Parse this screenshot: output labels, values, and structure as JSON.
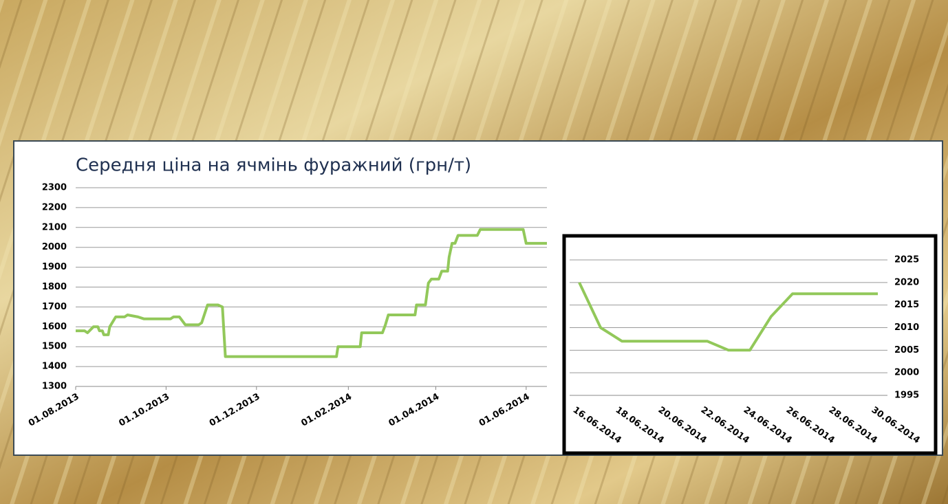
{
  "chart_data": [
    {
      "type": "line",
      "title": "Середня ціна на ячмінь фуражний (грн/т)",
      "x": [
        "2013-08-01",
        "2013-08-07",
        "2013-08-09",
        "2013-08-13",
        "2013-08-16",
        "2013-08-17",
        "2013-08-19",
        "2013-08-20",
        "2013-08-23",
        "2013-08-24",
        "2013-08-28",
        "2013-09-03",
        "2013-09-05",
        "2013-09-12",
        "2013-09-16",
        "2013-10-04",
        "2013-10-06",
        "2013-10-10",
        "2013-10-14",
        "2013-10-23",
        "2013-10-25",
        "2013-10-29",
        "2013-11-05",
        "2013-11-08",
        "2013-11-10",
        "2014-01-24",
        "2014-01-25",
        "2014-02-09",
        "2014-02-10",
        "2014-02-24",
        "2014-02-26",
        "2014-02-28",
        "2014-03-18",
        "2014-03-19",
        "2014-03-25",
        "2014-03-27",
        "2014-03-29",
        "2014-04-03",
        "2014-04-05",
        "2014-04-09",
        "2014-04-10",
        "2014-04-12",
        "2014-04-14",
        "2014-04-16",
        "2014-04-29",
        "2014-05-01",
        "2014-05-30",
        "2014-06-01",
        "2014-06-15"
      ],
      "series": [
        {
          "name": "Середня ціна",
          "color": "#92c85a",
          "values": [
            1580,
            1580,
            1570,
            1600,
            1600,
            1580,
            1580,
            1560,
            1560,
            1600,
            1650,
            1650,
            1660,
            1650,
            1640,
            1640,
            1650,
            1650,
            1610,
            1610,
            1620,
            1710,
            1710,
            1700,
            1450,
            1450,
            1500,
            1500,
            1570,
            1570,
            1610,
            1660,
            1660,
            1710,
            1710,
            1820,
            1840,
            1840,
            1880,
            1880,
            1950,
            2020,
            2020,
            2060,
            2060,
            2090,
            2090,
            2020,
            2020
          ]
        }
      ],
      "xlim": [
        "2013-08-01",
        "2014-06-15"
      ],
      "xticks": [
        {
          "value": "2013-08-01",
          "label": "01.08.2013"
        },
        {
          "value": "2013-10-01",
          "label": "01.10.2013"
        },
        {
          "value": "2013-12-01",
          "label": "01.12.2013"
        },
        {
          "value": "2014-02-01",
          "label": "01.02.2014"
        },
        {
          "value": "2014-04-01",
          "label": "01.04.2014"
        },
        {
          "value": "2014-06-01",
          "label": "01.06.2014"
        }
      ],
      "ylim": [
        1300,
        2300
      ],
      "yticks": [
        1300,
        1400,
        1500,
        1600,
        1700,
        1800,
        1900,
        2000,
        2100,
        2200,
        2300
      ],
      "grid": true
    },
    {
      "type": "line",
      "categories": [
        "16.06.2014",
        null,
        "18.06.2014",
        null,
        "20.06.2014",
        null,
        "22.06.2014",
        null,
        "24.06.2014",
        null,
        "26.06.2014",
        null,
        "28.06.2014",
        null,
        "30.06.2014"
      ],
      "series": [
        {
          "name": "Середня ціна",
          "color": "#92c85a",
          "values": [
            2020,
            2010,
            2007,
            2007,
            2007,
            2007,
            2007,
            2005,
            2005,
            2012.5,
            2017.5,
            2017.5,
            2017.5,
            2017.5,
            2017.5
          ]
        }
      ],
      "ylim": [
        1995,
        2025
      ],
      "yticks": [
        1995,
        2000,
        2005,
        2010,
        2015,
        2020,
        2025
      ],
      "grid": true,
      "y_axis_side": "right"
    }
  ]
}
